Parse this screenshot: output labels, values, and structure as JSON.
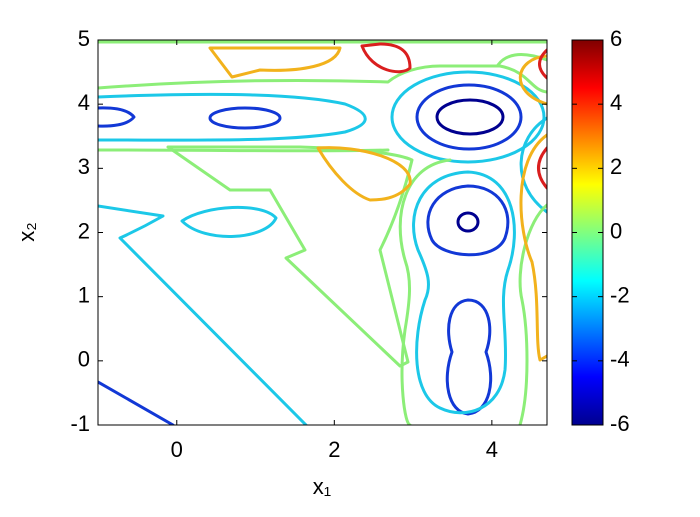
{
  "chart_data": {
    "type": "contour",
    "xlabel": "x₁",
    "ylabel": "x₂",
    "xlim": [
      -1,
      4.7
    ],
    "ylim": [
      -1,
      5
    ],
    "xticks": [
      0,
      2,
      4
    ],
    "yticks": [
      -1,
      0,
      1,
      2,
      3,
      4,
      5
    ],
    "levels": [
      -5.5,
      -4,
      -1.8,
      0.5,
      2.5,
      4.5
    ],
    "level_colors": [
      "#00008f",
      "#1238d6",
      "#1cc8e8",
      "#8cee78",
      "#f2b21c",
      "#da1e1e"
    ],
    "colorbar": {
      "lim": [
        -6,
        6
      ],
      "ticks": [
        -6,
        -4,
        -2,
        0,
        2,
        4,
        6
      ]
    }
  }
}
